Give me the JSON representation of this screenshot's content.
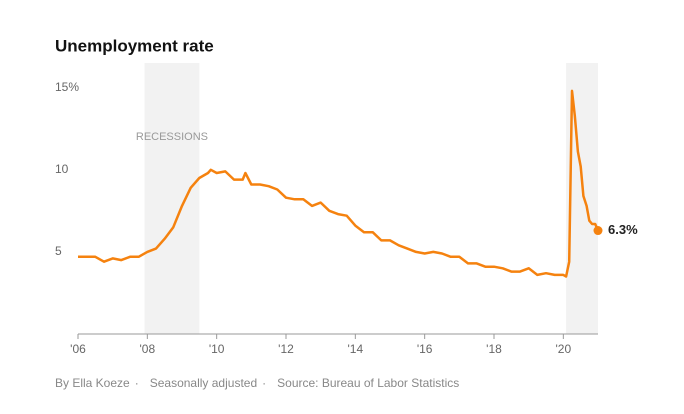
{
  "chart_data": {
    "type": "line",
    "title": "Unemployment rate",
    "shade_label": "RECESSIONS",
    "shades": [
      [
        2007.92,
        2009.5
      ],
      [
        2020.08,
        2021
      ]
    ],
    "x": [
      2006.0,
      2006.25,
      2006.5,
      2006.75,
      2007.0,
      2007.25,
      2007.5,
      2007.75,
      2008.0,
      2008.25,
      2008.5,
      2008.75,
      2009.0,
      2009.25,
      2009.5,
      2009.75,
      2009.83,
      2010.0,
      2010.25,
      2010.5,
      2010.75,
      2010.83,
      2011.0,
      2011.25,
      2011.5,
      2011.75,
      2012.0,
      2012.25,
      2012.5,
      2012.75,
      2013.0,
      2013.25,
      2013.5,
      2013.75,
      2014.0,
      2014.25,
      2014.5,
      2014.75,
      2015.0,
      2015.25,
      2015.5,
      2015.75,
      2016.0,
      2016.25,
      2016.5,
      2016.75,
      2017.0,
      2017.25,
      2017.5,
      2017.75,
      2018.0,
      2018.25,
      2018.5,
      2018.75,
      2019.0,
      2019.25,
      2019.5,
      2019.75,
      2020.0,
      2020.08,
      2020.17,
      2020.25,
      2020.33,
      2020.42,
      2020.5,
      2020.58,
      2020.67,
      2020.75,
      2020.83,
      2020.92,
      2021.0
    ],
    "series": [
      {
        "name": "Unemployment rate",
        "color": "#f5820f",
        "values": [
          4.7,
          4.7,
          4.7,
          4.4,
          4.6,
          4.5,
          4.7,
          4.7,
          5.0,
          5.2,
          5.8,
          6.5,
          7.8,
          8.9,
          9.5,
          9.8,
          10.0,
          9.8,
          9.9,
          9.4,
          9.4,
          9.8,
          9.1,
          9.1,
          9.0,
          8.8,
          8.3,
          8.2,
          8.2,
          7.8,
          8.0,
          7.5,
          7.3,
          7.2,
          6.6,
          6.2,
          6.2,
          5.7,
          5.7,
          5.4,
          5.2,
          5.0,
          4.9,
          5.0,
          4.9,
          4.7,
          4.7,
          4.3,
          4.3,
          4.1,
          4.1,
          4.0,
          3.8,
          3.8,
          4.0,
          3.6,
          3.7,
          3.6,
          3.6,
          3.5,
          4.4,
          14.8,
          13.3,
          11.1,
          10.2,
          8.4,
          7.8,
          6.9,
          6.7,
          6.7,
          6.3
        ]
      }
    ],
    "last_label": "6.3%",
    "xlim": [
      2006,
      2021
    ],
    "ylim": [
      0,
      16.5
    ],
    "yticks": [
      5,
      10,
      {
        "value": 15,
        "label": "15%"
      }
    ],
    "xticks": [
      {
        "value": 2006,
        "label": "'06"
      },
      {
        "value": 2008,
        "label": "'08"
      },
      {
        "value": 2010,
        "label": "'10"
      },
      {
        "value": 2012,
        "label": "'12"
      },
      {
        "value": 2014,
        "label": "'14"
      },
      {
        "value": 2016,
        "label": "'16"
      },
      {
        "value": 2018,
        "label": "'18"
      },
      {
        "value": 2020,
        "label": "'20"
      }
    ],
    "footer": [
      "By Ella Koeze",
      "Seasonally adjusted",
      "Source: Bureau of Labor Statistics"
    ]
  }
}
